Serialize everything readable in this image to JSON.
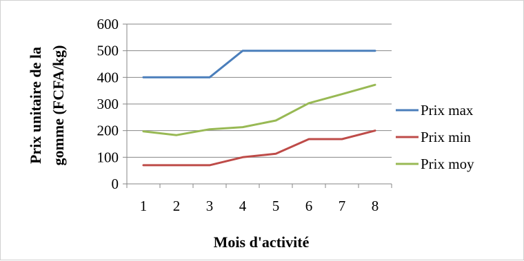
{
  "chart_data": {
    "type": "line",
    "title": "",
    "xlabel": "Mois d'activité",
    "ylabel_line1": "Prix unitaire de la",
    "ylabel_line2": "gomme (FCFA/kg)",
    "categories": [
      "1",
      "2",
      "3",
      "4",
      "5",
      "6",
      "7",
      "8"
    ],
    "x": [
      1,
      2,
      3,
      4,
      5,
      6,
      7,
      8
    ],
    "yticks": [
      "0",
      "100",
      "200",
      "300",
      "400",
      "500",
      "600"
    ],
    "ylim": [
      0,
      600
    ],
    "grid": true,
    "legend_position": "right",
    "series": [
      {
        "name": "Prix max",
        "color": "#4a7ebb",
        "values": [
          400,
          400,
          400,
          500,
          500,
          500,
          500,
          500
        ]
      },
      {
        "name": "Prix min",
        "color": "#be4b48",
        "values": [
          70,
          70,
          70,
          100,
          113,
          168,
          168,
          200
        ]
      },
      {
        "name": "Prix moy",
        "color": "#98b954",
        "values": [
          197,
          183,
          205,
          213,
          238,
          303,
          337,
          372
        ]
      }
    ]
  }
}
